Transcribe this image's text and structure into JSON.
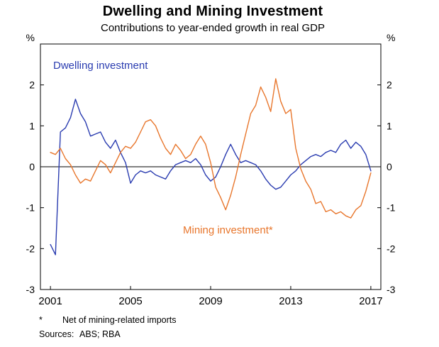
{
  "chart_data": {
    "type": "line",
    "title": "Dwelling and Mining Investment",
    "subtitle": "Contributions to year-ended growth in real GDP",
    "y_unit": "%",
    "ylim": [
      -3,
      3
    ],
    "yticks": [
      -3,
      -2,
      -1,
      0,
      1,
      2
    ],
    "xlim": [
      2000.5,
      2017.5
    ],
    "xticks": [
      2001,
      2005,
      2009,
      2013,
      2017
    ],
    "zero_line": true,
    "grid": false,
    "x_start": 2001.0,
    "x_step": 0.25,
    "series_labels": {
      "dwelling": "Dwelling investment",
      "mining": "Mining investment*"
    },
    "colors": {
      "dwelling": "#2a3cb0",
      "mining": "#e8762c"
    },
    "series": [
      {
        "name": "Dwelling investment",
        "color": "#2a3cb0",
        "values": [
          -1.9,
          -2.15,
          0.85,
          0.95,
          1.2,
          1.65,
          1.3,
          1.1,
          0.75,
          0.8,
          0.85,
          0.6,
          0.45,
          0.65,
          0.35,
          0.1,
          -0.4,
          -0.2,
          -0.1,
          -0.15,
          -0.1,
          -0.2,
          -0.25,
          -0.3,
          -0.1,
          0.05,
          0.1,
          0.15,
          0.1,
          0.2,
          0.05,
          -0.2,
          -0.35,
          -0.25,
          0.0,
          0.3,
          0.55,
          0.3,
          0.1,
          0.15,
          0.1,
          0.05,
          -0.1,
          -0.3,
          -0.45,
          -0.55,
          -0.5,
          -0.35,
          -0.2,
          -0.1,
          0.05,
          0.15,
          0.25,
          0.3,
          0.25,
          0.35,
          0.4,
          0.35,
          0.55,
          0.65,
          0.45,
          0.6,
          0.5,
          0.3,
          -0.1
        ]
      },
      {
        "name": "Mining investment*",
        "color": "#e8762c",
        "values": [
          0.35,
          0.3,
          0.45,
          0.2,
          0.05,
          -0.2,
          -0.4,
          -0.3,
          -0.35,
          -0.1,
          0.15,
          0.05,
          -0.15,
          0.1,
          0.35,
          0.5,
          0.45,
          0.6,
          0.85,
          1.1,
          1.15,
          1.0,
          0.7,
          0.45,
          0.3,
          0.55,
          0.4,
          0.2,
          0.3,
          0.55,
          0.75,
          0.55,
          0.1,
          -0.5,
          -0.75,
          -1.05,
          -0.7,
          -0.25,
          0.3,
          0.8,
          1.3,
          1.5,
          1.95,
          1.7,
          1.35,
          2.15,
          1.6,
          1.3,
          1.4,
          0.45,
          -0.05,
          -0.35,
          -0.55,
          -0.9,
          -0.85,
          -1.1,
          -1.05,
          -1.15,
          -1.1,
          -1.2,
          -1.25,
          -1.05,
          -0.95,
          -0.6,
          -0.15
        ]
      }
    ]
  },
  "footnotes": {
    "asterisk": "*",
    "note": "Net of mining-related imports",
    "sources_label": "Sources:",
    "sources": "ABS; RBA"
  }
}
